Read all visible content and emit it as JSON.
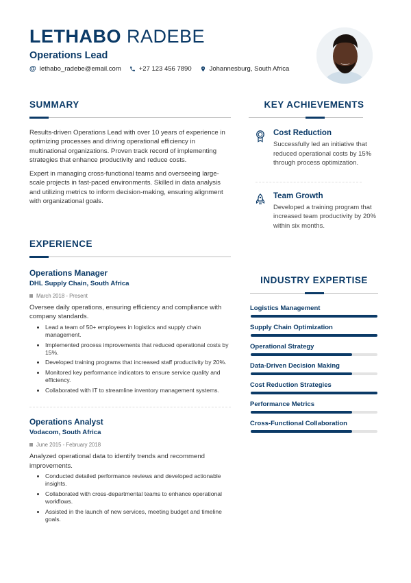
{
  "header": {
    "first_name": "LETHABO",
    "last_name": "RADEBE",
    "title": "Operations Lead",
    "contacts": [
      {
        "icon": "at-icon",
        "text": "lethabo_radebe@email.com"
      },
      {
        "icon": "phone-icon",
        "text": "+27 123 456 7890"
      },
      {
        "icon": "location-pin-icon",
        "text": "Johannesburg, South Africa"
      }
    ]
  },
  "colors": {
    "accent": "#0b3a67"
  },
  "summary": {
    "heading": "SUMMARY",
    "paragraphs": [
      "Results-driven Operations Lead with over 10 years of experience in optimizing processes and driving operational efficiency in multinational organizations. Proven track record of implementing strategies that enhance productivity and reduce costs.",
      "Expert in managing cross-functional teams and overseeing large-scale projects in fast-paced environments. Skilled in data analysis and utilizing metrics to inform decision-making, ensuring alignment with organizational goals."
    ]
  },
  "experience": {
    "heading": "EXPERIENCE",
    "jobs": [
      {
        "title": "Operations Manager",
        "company": "DHL Supply Chain, South Africa",
        "dates": "March 2018 - Present",
        "description": "Oversee daily operations, ensuring efficiency and compliance with company standards.",
        "bullets": [
          "Lead a team of 50+ employees in logistics and supply chain management.",
          "Implemented process improvements that reduced operational costs by 15%.",
          "Developed training programs that increased staff productivity by 20%.",
          "Monitored key performance indicators to ensure service quality and efficiency.",
          "Collaborated with IT to streamline inventory management systems."
        ]
      },
      {
        "title": "Operations Analyst",
        "company": "Vodacom, South Africa",
        "dates": "June 2015 - February 2018",
        "description": "Analyzed operational data to identify trends and recommend improvements.",
        "bullets": [
          "Conducted detailed performance reviews and developed actionable insights.",
          "Collaborated with cross-departmental teams to enhance operational workflows.",
          "Assisted in the launch of new services, meeting budget and timeline goals."
        ]
      }
    ]
  },
  "achievements": {
    "heading": "KEY ACHIEVEMENTS",
    "items": [
      {
        "icon": "award-ribbon-icon",
        "title": "Cost Reduction",
        "text": "Successfully led an initiative that reduced operational costs by 15% through process optimization."
      },
      {
        "icon": "rocket-icon",
        "title": "Team Growth",
        "text": "Developed a training program that increased team productivity by 20% within six months."
      }
    ]
  },
  "expertise": {
    "heading": "INDUSTRY EXPERTISE",
    "skills": [
      {
        "name": "Logistics Management",
        "level_percent": 100
      },
      {
        "name": "Supply Chain Optimization",
        "level_percent": 100
      },
      {
        "name": "Operational Strategy",
        "level_percent": 80
      },
      {
        "name": "Data-Driven Decision Making",
        "level_percent": 80
      },
      {
        "name": "Cost Reduction Strategies",
        "level_percent": 100
      },
      {
        "name": "Performance Metrics",
        "level_percent": 80
      },
      {
        "name": "Cross-Functional Collaboration",
        "level_percent": 80
      }
    ]
  }
}
